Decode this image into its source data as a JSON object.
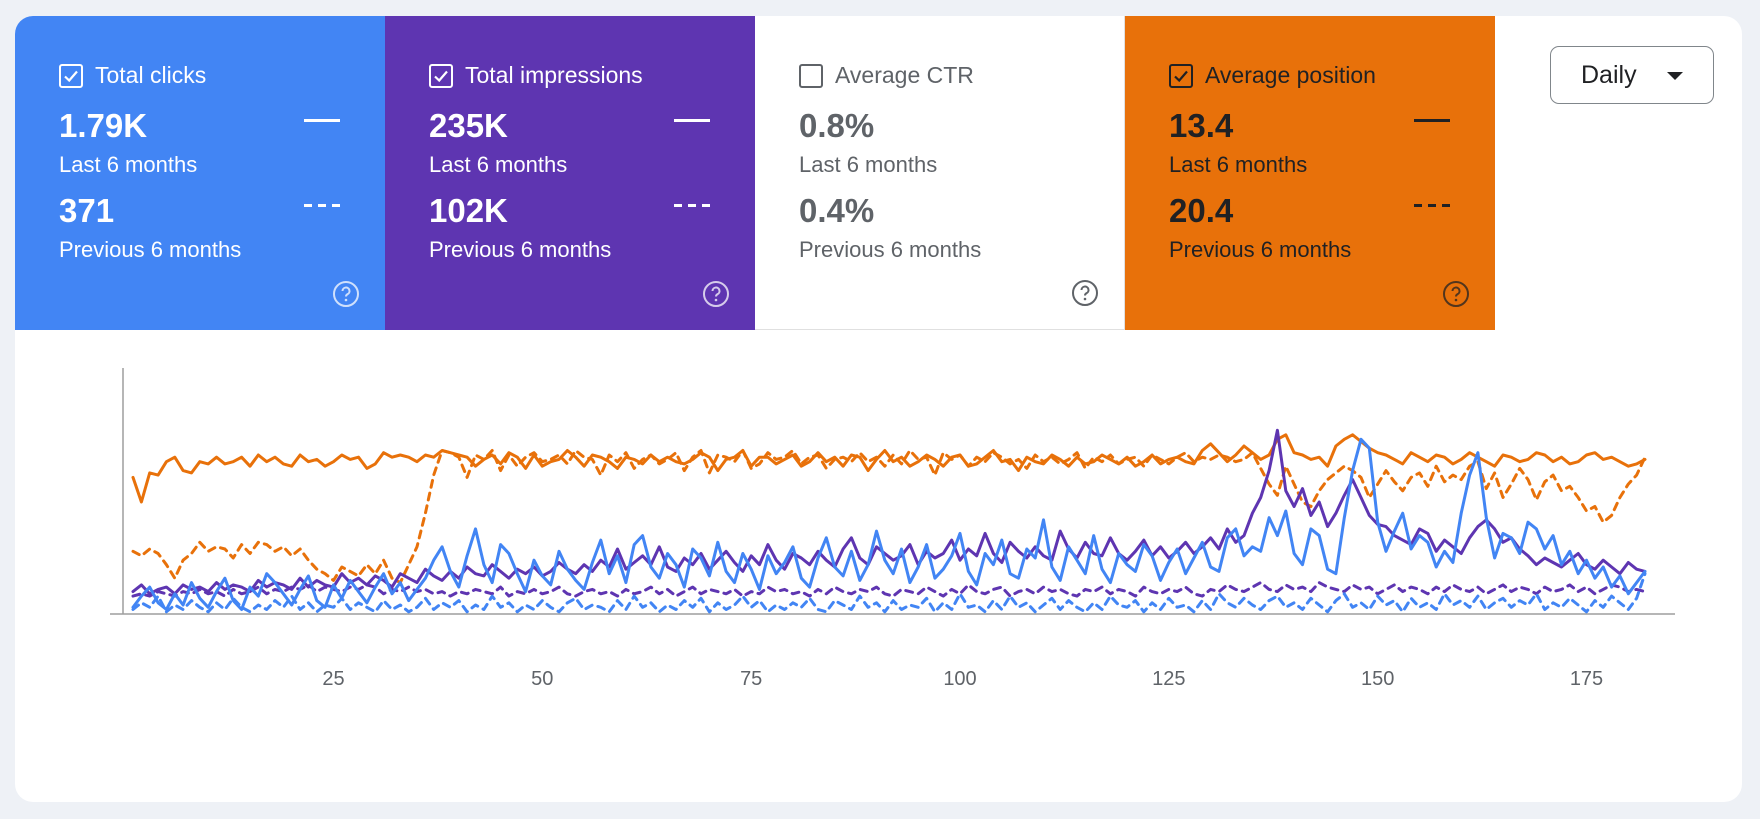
{
  "metrics": [
    {
      "id": "clicks",
      "label": "Total clicks",
      "checked": true,
      "current": "1.79K",
      "current_label": "Last 6 months",
      "previous": "371",
      "previous_label": "Previous 6 months"
    },
    {
      "id": "impressions",
      "label": "Total impressions",
      "checked": true,
      "current": "235K",
      "current_label": "Last 6 months",
      "previous": "102K",
      "previous_label": "Previous 6 months"
    },
    {
      "id": "ctr",
      "label": "Average CTR",
      "checked": false,
      "current": "0.8%",
      "current_label": "Last 6 months",
      "previous": "0.4%",
      "previous_label": "Previous 6 months"
    },
    {
      "id": "position",
      "label": "Average position",
      "checked": true,
      "current": "13.4",
      "current_label": "Last 6 months",
      "previous": "20.4",
      "previous_label": "Previous 6 months"
    }
  ],
  "granularity": {
    "selected": "Daily"
  },
  "colors": {
    "clicks": "#4285f4",
    "impressions": "#5e35b1",
    "position": "#e8710a",
    "ctr": "#ffffff",
    "axis": "#9e9e9e"
  },
  "icons": {
    "checkbox": "check-icon",
    "help": "help-icon",
    "dropdown": "caret-down-icon"
  },
  "chart_data": {
    "type": "line",
    "x_range": [
      1,
      182
    ],
    "x_ticks": [
      25,
      50,
      75,
      100,
      125,
      150,
      175
    ],
    "normalized_scale": true,
    "ylim": [
      0,
      100
    ],
    "grid": false,
    "legend": "none",
    "series": [
      {
        "metric": "position",
        "period": "current",
        "style": "solid",
        "color": "#e8710a",
        "values": [
          61,
          50,
          63,
          62,
          68,
          70,
          64,
          63,
          68,
          67,
          70,
          67,
          68,
          70,
          66,
          71,
          68,
          70,
          67,
          66,
          71,
          68,
          69,
          66,
          68,
          71,
          69,
          70,
          65,
          67,
          72,
          70,
          71,
          70,
          68,
          71,
          70,
          73,
          72,
          71,
          70,
          66,
          69,
          71,
          67,
          72,
          70,
          65,
          71,
          66,
          68,
          69,
          73,
          70,
          66,
          71,
          70,
          68,
          65,
          70,
          69,
          67,
          71,
          68,
          70,
          68,
          67,
          69,
          72,
          70,
          64,
          69,
          70,
          73,
          66,
          70,
          70,
          67,
          69,
          71,
          66,
          68,
          72,
          68,
          70,
          66,
          71,
          70,
          64,
          69,
          73,
          68,
          70,
          66,
          68,
          71,
          69,
          66,
          70,
          71,
          66,
          67,
          70,
          73,
          68,
          69,
          64,
          70,
          68,
          67,
          71,
          69,
          66,
          70,
          67,
          68,
          71,
          69,
          67,
          70,
          66,
          68,
          71,
          67,
          69,
          70,
          68,
          67,
          73,
          76,
          72,
          68,
          71,
          75,
          72,
          69,
          71,
          78,
          80,
          72,
          71,
          69,
          70,
          66,
          75,
          78,
          80,
          77,
          74,
          72,
          71,
          69,
          67,
          72,
          70,
          68,
          71,
          70,
          67,
          69,
          72,
          70,
          68,
          66,
          71,
          70,
          68,
          69,
          72,
          71,
          68,
          70,
          67,
          68,
          71,
          72,
          69,
          70,
          68,
          66,
          67,
          69
        ]
      },
      {
        "metric": "position",
        "period": "previous",
        "style": "dashed",
        "color": "#e8710a",
        "values": [
          28,
          26,
          29,
          27,
          22,
          16,
          24,
          27,
          32,
          28,
          30,
          29,
          25,
          31,
          27,
          32,
          31,
          28,
          30,
          26,
          29,
          24,
          20,
          18,
          15,
          21,
          19,
          17,
          22,
          18,
          24,
          16,
          14,
          22,
          30,
          45,
          62,
          73,
          72,
          70,
          61,
          71,
          69,
          73,
          64,
          71,
          66,
          70,
          72,
          68,
          69,
          71,
          67,
          73,
          70,
          69,
          62,
          71,
          68,
          72,
          65,
          69,
          71,
          67,
          69,
          72,
          64,
          70,
          73,
          63,
          71,
          70,
          68,
          73,
          65,
          67,
          72,
          69,
          70,
          73,
          67,
          70,
          71,
          65,
          69,
          70,
          68,
          72,
          68,
          70,
          66,
          71,
          67,
          73,
          69,
          70,
          62,
          72,
          69,
          71,
          66,
          70,
          68,
          72,
          70,
          67,
          69,
          65,
          71,
          68,
          70,
          67,
          69,
          72,
          65,
          70,
          68,
          71,
          67,
          69,
          70,
          66,
          71,
          69,
          67,
          70,
          72,
          68,
          70,
          69,
          71,
          70,
          68,
          69,
          72,
          65,
          58,
          53,
          66,
          58,
          50,
          48,
          55,
          60,
          63,
          66,
          64,
          61,
          52,
          58,
          64,
          59,
          55,
          61,
          63,
          57,
          66,
          59,
          62,
          60,
          66,
          68,
          56,
          63,
          52,
          58,
          65,
          60,
          51,
          59,
          62,
          55,
          57,
          52,
          46,
          48,
          41,
          44,
          52,
          58,
          62,
          70
        ]
      },
      {
        "metric": "impressions",
        "period": "current",
        "style": "solid",
        "color": "#5e35b1",
        "values": [
          10,
          13,
          9,
          11,
          12,
          9,
          13,
          11,
          12,
          10,
          14,
          11,
          13,
          12,
          10,
          15,
          12,
          14,
          13,
          11,
          16,
          12,
          15,
          13,
          12,
          18,
          14,
          16,
          13,
          17,
          15,
          12,
          18,
          16,
          14,
          20,
          17,
          15,
          19,
          16,
          21,
          18,
          17,
          22,
          19,
          16,
          20,
          18,
          21,
          17,
          19,
          23,
          20,
          18,
          22,
          19,
          24,
          21,
          29,
          20,
          23,
          26,
          22,
          30,
          21,
          19,
          25,
          22,
          27,
          20,
          24,
          28,
          23,
          19,
          26,
          22,
          31,
          24,
          20,
          27,
          25,
          22,
          28,
          24,
          21,
          29,
          34,
          25,
          22,
          30,
          27,
          24,
          26,
          31,
          22,
          28,
          25,
          27,
          33,
          24,
          29,
          26,
          36,
          27,
          23,
          32,
          28,
          25,
          30,
          26,
          24,
          37,
          29,
          25,
          32,
          27,
          26,
          34,
          27,
          24,
          28,
          33,
          26,
          30,
          25,
          28,
          32,
          27,
          30,
          34,
          29,
          38,
          32,
          35,
          45,
          52,
          64,
          82,
          55,
          48,
          56,
          44,
          50,
          39,
          45,
          53,
          60,
          52,
          44,
          40,
          39,
          35,
          33,
          31,
          38,
          36,
          28,
          33,
          30,
          27,
          34,
          39,
          42,
          38,
          32,
          34,
          29,
          26,
          22,
          25,
          23,
          21,
          24,
          27,
          22,
          20,
          24,
          21,
          18,
          23,
          20,
          19
        ]
      },
      {
        "metric": "impressions",
        "period": "previous",
        "style": "dashed",
        "color": "#5e35b1",
        "values": [
          8,
          9,
          8,
          10,
          9,
          8,
          10,
          9,
          11,
          9,
          10,
          8,
          11,
          9,
          10,
          12,
          9,
          11,
          10,
          12,
          11,
          13,
          10,
          12,
          11,
          10,
          12,
          11,
          13,
          12,
          9,
          11,
          10,
          12,
          10,
          11,
          9,
          10,
          8,
          10,
          9,
          11,
          10,
          9,
          12,
          8,
          10,
          9,
          11,
          9,
          10,
          12,
          9,
          8,
          10,
          11,
          9,
          10,
          8,
          11,
          9,
          10,
          12,
          9,
          11,
          8,
          10,
          12,
          9,
          11,
          10,
          9,
          11,
          8,
          10,
          9,
          12,
          10,
          11,
          9,
          10,
          8,
          11,
          9,
          12,
          10,
          9,
          11,
          10,
          12,
          9,
          8,
          11,
          10,
          9,
          12,
          10,
          8,
          11,
          9,
          13,
          10,
          9,
          11,
          12,
          8,
          10,
          11,
          9,
          12,
          10,
          11,
          9,
          8,
          11,
          10,
          12,
          9,
          11,
          10,
          8,
          12,
          10,
          9,
          11,
          10,
          12,
          9,
          8,
          11,
          10,
          13,
          11,
          10,
          12,
          14,
          11,
          10,
          13,
          11,
          12,
          10,
          14,
          12,
          11,
          10,
          13,
          11,
          12,
          9,
          11,
          13,
          10,
          12,
          11,
          9,
          12,
          10,
          13,
          11,
          10,
          12,
          9,
          11,
          13,
          10,
          12,
          11,
          9,
          12,
          10,
          11,
          13,
          10,
          12,
          9,
          11,
          13,
          12,
          10,
          11,
          10
        ]
      },
      {
        "metric": "clicks",
        "period": "current",
        "style": "solid",
        "color": "#4285f4",
        "values": [
          3,
          8,
          12,
          5,
          2,
          9,
          4,
          14,
          7,
          3,
          10,
          16,
          6,
          2,
          12,
          8,
          18,
          14,
          9,
          4,
          11,
          17,
          6,
          3,
          13,
          7,
          15,
          10,
          5,
          12,
          18,
          9,
          14,
          6,
          11,
          16,
          24,
          30,
          19,
          12,
          26,
          38,
          22,
          14,
          31,
          27,
          18,
          10,
          24,
          17,
          13,
          28,
          20,
          15,
          11,
          23,
          33,
          18,
          26,
          14,
          31,
          35,
          21,
          16,
          27,
          22,
          12,
          29,
          25,
          17,
          32,
          19,
          14,
          27,
          20,
          11,
          26,
          18,
          23,
          30,
          16,
          12,
          25,
          34,
          21,
          17,
          28,
          15,
          22,
          37,
          24,
          18,
          29,
          14,
          21,
          31,
          16,
          20,
          26,
          36,
          19,
          13,
          27,
          22,
          33,
          18,
          16,
          29,
          25,
          42,
          21,
          15,
          30,
          24,
          18,
          35,
          20,
          14,
          27,
          22,
          19,
          31,
          26,
          15,
          23,
          29,
          18,
          25,
          32,
          21,
          19,
          34,
          38,
          26,
          30,
          28,
          43,
          35,
          46,
          27,
          22,
          38,
          35,
          20,
          18,
          43,
          64,
          78,
          74,
          41,
          28,
          37,
          45,
          29,
          35,
          32,
          21,
          28,
          23,
          45,
          62,
          72,
          43,
          25,
          36,
          34,
          27,
          41,
          38,
          29,
          35,
          22,
          28,
          18,
          24,
          16,
          21,
          12,
          17,
          9,
          14,
          19
        ]
      },
      {
        "metric": "clicks",
        "period": "previous",
        "style": "dashed",
        "color": "#4285f4",
        "values": [
          2,
          5,
          3,
          8,
          1,
          4,
          2,
          6,
          3,
          1,
          5,
          2,
          7,
          3,
          1,
          4,
          2,
          6,
          3,
          8,
          2,
          5,
          1,
          4,
          3,
          7,
          2,
          5,
          3,
          1,
          6,
          2,
          4,
          1,
          3,
          7,
          2,
          5,
          3,
          6,
          1,
          4,
          2,
          8,
          3,
          5,
          1,
          4,
          2,
          6,
          3,
          1,
          5,
          7,
          2,
          4,
          3,
          1,
          6,
          2,
          8,
          3,
          5,
          1,
          4,
          2,
          6,
          3,
          7,
          1,
          5,
          2,
          4,
          8,
          3,
          6,
          1,
          4,
          2,
          5,
          3,
          7,
          2,
          1,
          6,
          4,
          2,
          8,
          3,
          5,
          1,
          6,
          2,
          4,
          3,
          7,
          1,
          5,
          2,
          9,
          3,
          4,
          1,
          6,
          2,
          8,
          3,
          5,
          1,
          4,
          7,
          2,
          6,
          3,
          1,
          5,
          2,
          8,
          4,
          3,
          6,
          1,
          5,
          2,
          7,
          3,
          4,
          1,
          6,
          2,
          9,
          5,
          3,
          7,
          4,
          2,
          6,
          8,
          3,
          5,
          2,
          7,
          4,
          1,
          6,
          9,
          3,
          5,
          2,
          8,
          4,
          6,
          1,
          7,
          3,
          5,
          2,
          9,
          4,
          6,
          3,
          8,
          2,
          5,
          7,
          3,
          6,
          4,
          9,
          2,
          5,
          3,
          7,
          4,
          1,
          6,
          3,
          8,
          5,
          2,
          7,
          18
        ]
      }
    ]
  }
}
